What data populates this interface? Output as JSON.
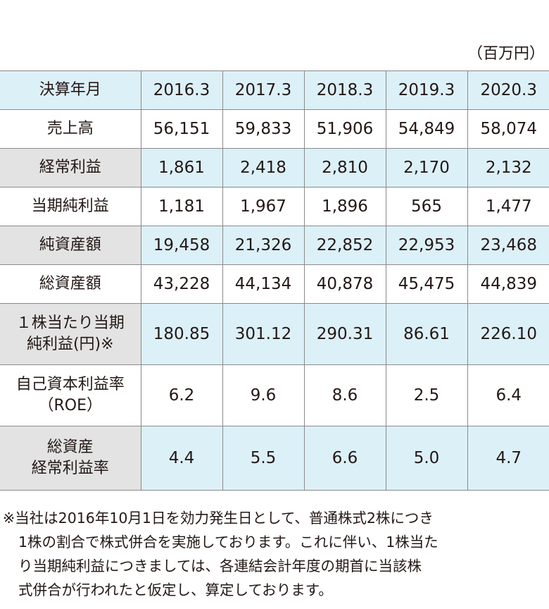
{
  "unit_label": "（百万円）",
  "header": {
    "label": "決算年月",
    "years": [
      "2016.3",
      "2017.3",
      "2018.3",
      "2019.3",
      "2020.3"
    ]
  },
  "rows": [
    {
      "label": [
        "売上高"
      ],
      "values": [
        "56,151",
        "59,833",
        "51,906",
        "54,849",
        "58,074"
      ]
    },
    {
      "label": [
        "経常利益"
      ],
      "values": [
        "1,861",
        "2,418",
        "2,810",
        "2,170",
        "2,132"
      ]
    },
    {
      "label": [
        "当期純利益"
      ],
      "values": [
        "1,181",
        "1,967",
        "1,896",
        "565",
        "1,477"
      ]
    },
    {
      "label": [
        "純資産額"
      ],
      "values": [
        "19,458",
        "21,326",
        "22,852",
        "22,953",
        "23,468"
      ]
    },
    {
      "label": [
        "総資産額"
      ],
      "values": [
        "43,228",
        "44,134",
        "40,878",
        "45,475",
        "44,839"
      ]
    },
    {
      "label": [
        "１株当たり当期",
        "純利益(円)※"
      ],
      "values": [
        "180.85",
        "301.12",
        "290.31",
        "86.61",
        "226.10"
      ]
    },
    {
      "label": [
        "自己資本利益率",
        "（ROE）"
      ],
      "values": [
        "6.2",
        "9.6",
        "8.6",
        "2.5",
        "6.4"
      ]
    },
    {
      "label": [
        "総資産",
        "経常利益率"
      ],
      "values": [
        "4.4",
        "5.5",
        "6.6",
        "5.0",
        "4.7"
      ]
    }
  ],
  "note": [
    "※当社は2016年10月1日を効力発生日として、普通株式2株につき",
    "1株の割合で株式併合を実施しております。これに伴い、1株当た",
    "り当期純利益につきましては、各連結会計年度の期首に当該株",
    "式併合が行われたと仮定し、算定しております。"
  ]
}
